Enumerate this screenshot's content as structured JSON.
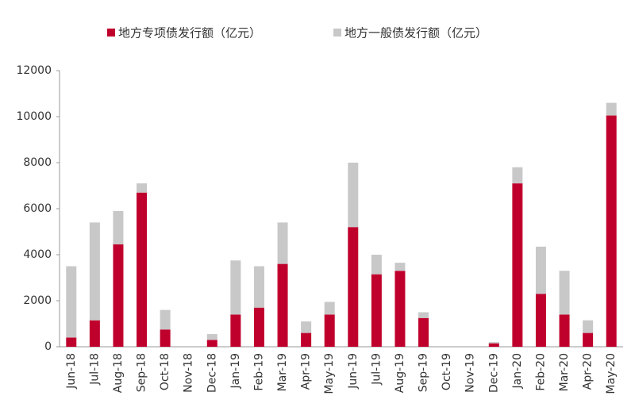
{
  "chart_data": {
    "type": "stacked-bar",
    "categories": [
      "Jun-18",
      "Jul-18",
      "Aug-18",
      "Sep-18",
      "Oct-18",
      "Nov-18",
      "Dec-18",
      "Jan-19",
      "Feb-19",
      "Mar-19",
      "Apr-19",
      "May-19",
      "Jun-19",
      "Jul-19",
      "Aug-19",
      "Sep-19",
      "Oct-19",
      "Nov-19",
      "Dec-19",
      "Jan-20",
      "Feb-20",
      "Mar-20",
      "Apr-20",
      "May-20"
    ],
    "series": [
      {
        "name": "地方专项债发行额（亿元）",
        "color": "#c0002c",
        "values": [
          400,
          1150,
          4450,
          6700,
          750,
          0,
          300,
          1400,
          1700,
          3600,
          600,
          1400,
          5200,
          3150,
          3300,
          1250,
          0,
          0,
          150,
          7100,
          2300,
          1400,
          600,
          10050
        ]
      },
      {
        "name": "地方一般债发行额（亿元）",
        "color": "#c8c8c8",
        "values": [
          3100,
          4250,
          1450,
          400,
          850,
          0,
          250,
          2350,
          1800,
          1800,
          500,
          550,
          2800,
          850,
          350,
          250,
          0,
          0,
          50,
          700,
          2050,
          1900,
          550,
          550
        ]
      }
    ],
    "ylim": [
      0,
      12000
    ],
    "yticks": [
      0,
      2000,
      4000,
      6000,
      8000,
      10000,
      12000
    ]
  }
}
